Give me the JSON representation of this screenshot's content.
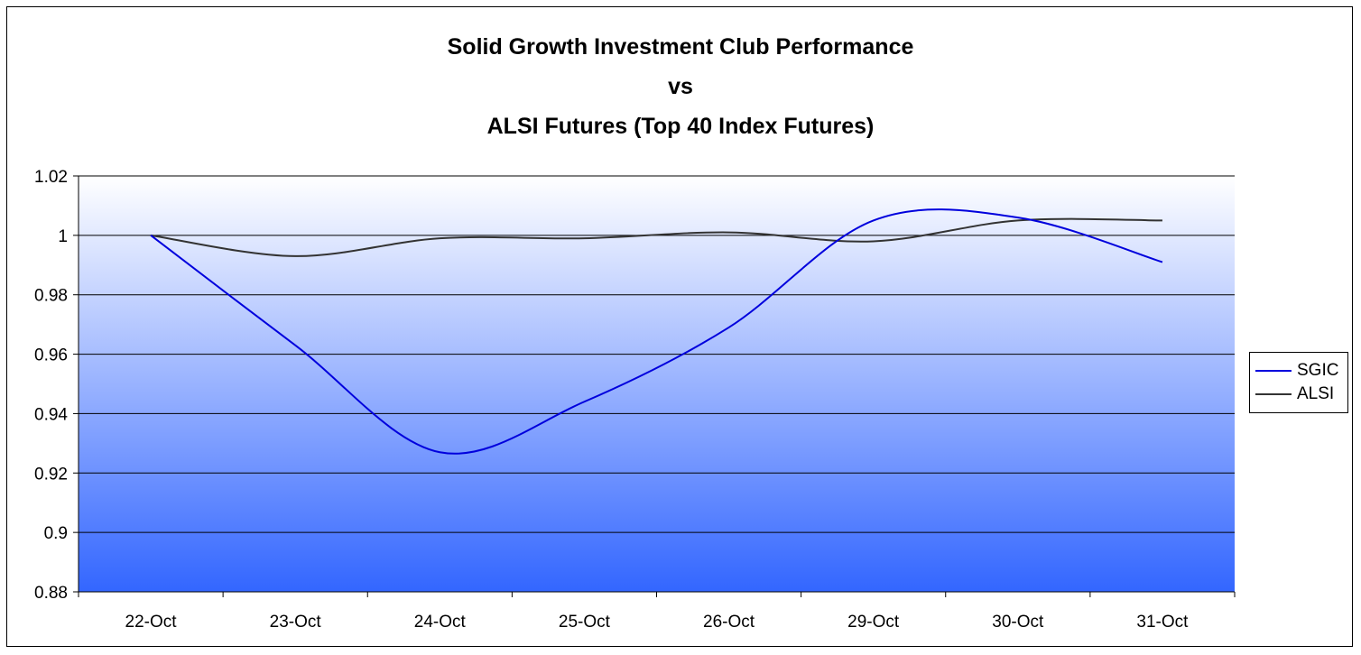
{
  "chart_data": {
    "type": "line",
    "title_lines": [
      "Solid Growth Investment Club Performance",
      "vs",
      "ALSI Futures (Top 40 Index Futures)"
    ],
    "categories": [
      "22-Oct",
      "23-Oct",
      "24-Oct",
      "25-Oct",
      "26-Oct",
      "29-Oct",
      "30-Oct",
      "31-Oct"
    ],
    "series": [
      {
        "name": "SGIC",
        "color": "#0000dd",
        "values": [
          1.0,
          0.963,
          0.927,
          0.944,
          0.969,
          1.005,
          1.006,
          0.991
        ]
      },
      {
        "name": "ALSI",
        "color": "#333333",
        "values": [
          1.0,
          0.993,
          0.999,
          0.999,
          1.001,
          0.998,
          1.005,
          1.005
        ]
      }
    ],
    "ylim": [
      0.88,
      1.02
    ],
    "yticks": [
      "0.88",
      "0.9",
      "0.92",
      "0.94",
      "0.96",
      "0.98",
      "1",
      "1.02"
    ],
    "grid": true,
    "legend_position": "right",
    "plot_gradient": {
      "top": "#ffffff",
      "bottom": "#3366ff"
    }
  }
}
